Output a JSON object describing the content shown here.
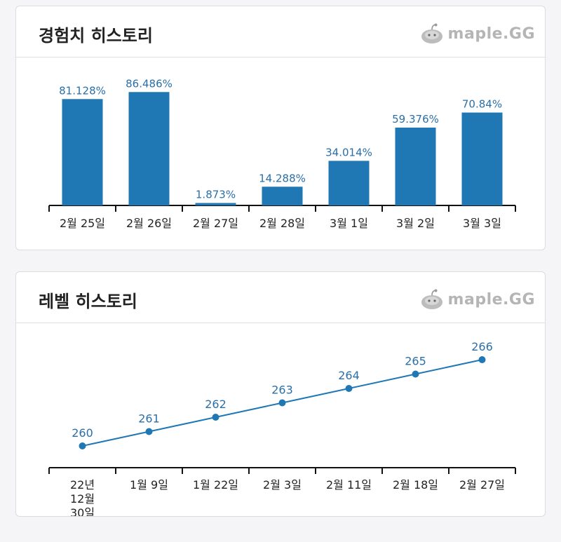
{
  "brand": {
    "label": "maple.GG",
    "icon": "slime-mascot-icon"
  },
  "colors": {
    "bar": "#1f77b4",
    "label": "#2a6fa8",
    "axis": "#111111"
  },
  "experience_card": {
    "title": "경험치 히스토리"
  },
  "level_card": {
    "title": "레벨 히스토리"
  },
  "chart_data": [
    {
      "type": "bar",
      "title": "경험치 히스토리",
      "categories": [
        "2월 25일",
        "2월 26일",
        "2월 27일",
        "2월 28일",
        "3월 1일",
        "3월 2일",
        "3월 3일"
      ],
      "values": [
        81.128,
        86.486,
        1.873,
        14.288,
        34.014,
        59.376,
        70.84
      ],
      "value_labels": [
        "81.128%",
        "86.486%",
        "1.873%",
        "14.288%",
        "34.014%",
        "59.376%",
        "70.84%"
      ],
      "ylim": [
        0,
        100
      ],
      "grid": false
    },
    {
      "type": "line",
      "title": "레벨 히스토리",
      "categories": [
        "22년 12월 30일",
        "1월 9일",
        "1월 22일",
        "2월 3일",
        "2월 11일",
        "2월 18일",
        "2월 27일"
      ],
      "values": [
        260,
        261,
        262,
        263,
        264,
        265,
        266
      ],
      "value_labels": [
        "260",
        "261",
        "262",
        "263",
        "264",
        "265",
        "266"
      ],
      "ylim": [
        260,
        266
      ],
      "grid": false
    }
  ]
}
